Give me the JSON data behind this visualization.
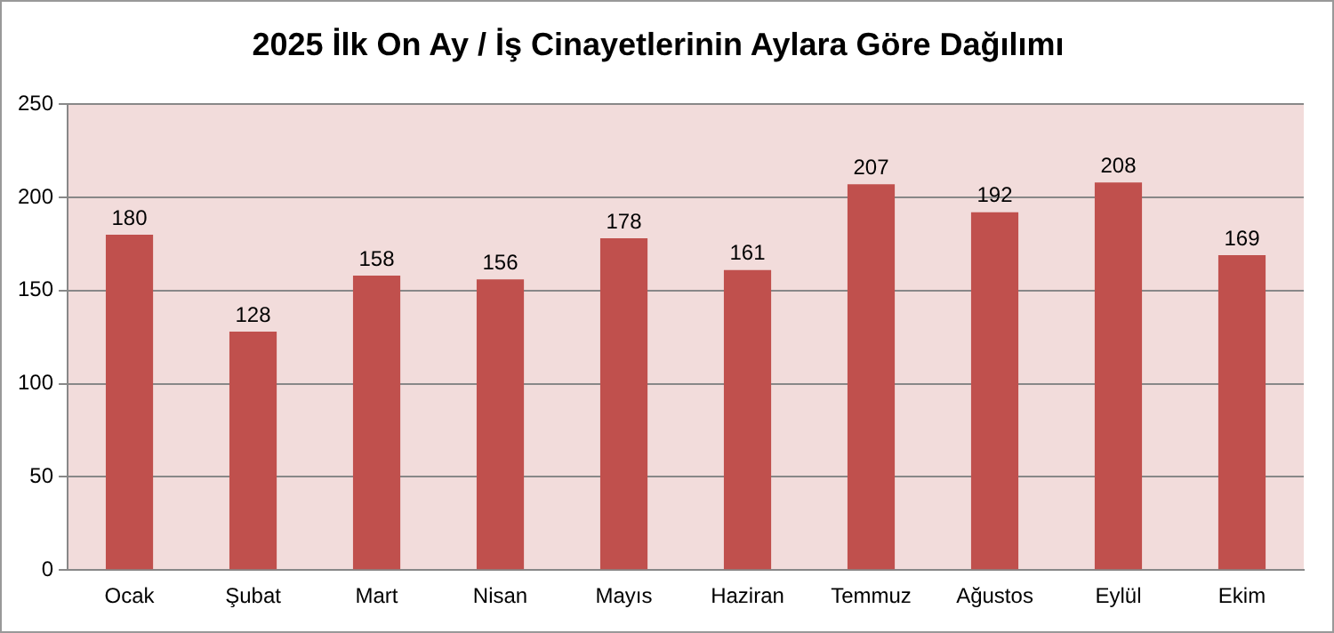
{
  "chart_data": {
    "type": "bar",
    "title": "2025 İlk On Ay / İş Cinayetlerinin Aylara Göre Dağılımı",
    "categories": [
      "Ocak",
      "Şubat",
      "Mart",
      "Nisan",
      "Mayıs",
      "Haziran",
      "Temmuz",
      "Ağustos",
      "Eylül",
      "Ekim"
    ],
    "values": [
      180,
      128,
      158,
      156,
      178,
      161,
      207,
      192,
      208,
      169
    ],
    "color": "#c0504d",
    "ylim": [
      0,
      250
    ],
    "yticks": [
      0,
      50,
      100,
      150,
      200,
      250
    ],
    "grid": "y",
    "data_labels": true
  }
}
